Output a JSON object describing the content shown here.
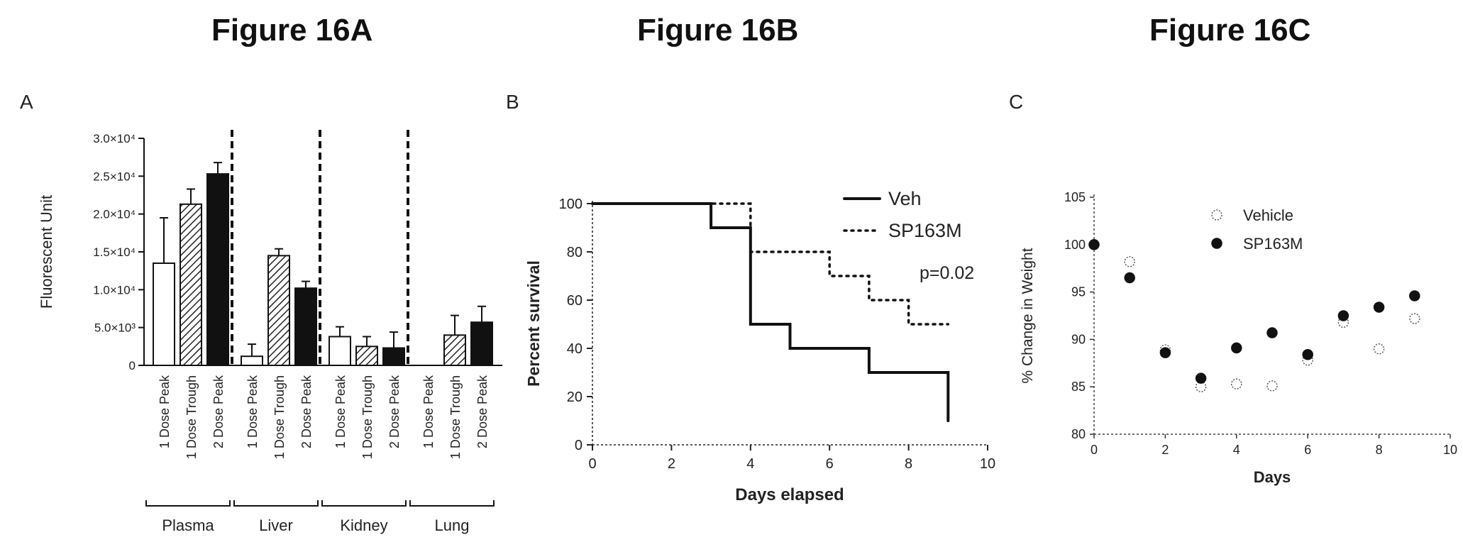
{
  "figure_titles": [
    "Figure 16A",
    "Figure 16B",
    "Figure 16C"
  ],
  "chart_data": [
    {
      "type": "bar",
      "panel_label": "A",
      "ylabel": "Fluorescent Unit",
      "ylim": [
        0,
        30000
      ],
      "yticks": [
        0,
        5000,
        10000,
        15000,
        20000,
        25000,
        30000
      ],
      "ytick_labels": [
        "0",
        "5.0×10³",
        "1.0×10⁴",
        "1.5×10⁴",
        "2.0×10⁴",
        "2.5×10⁴",
        "3.0×10⁴"
      ],
      "categories": [
        "1 Dose Peak",
        "1 Dose Trough",
        "2 Dose Peak",
        "1 Dose Peak",
        "1 Dose Trough",
        "2 Dose Peak",
        "1 Dose Peak",
        "1 Dose Trough",
        "2 Dose Peak",
        "1 Dose Peak",
        "1 Dose Trough",
        "2 Dose Peak"
      ],
      "groups": [
        {
          "name": "Plasma",
          "values": [
            13500,
            21300,
            25300
          ],
          "errors": [
            6000,
            2000,
            1500
          ]
        },
        {
          "name": "Liver",
          "values": [
            1200,
            14500,
            10200
          ],
          "errors": [
            1600,
            900,
            900
          ]
        },
        {
          "name": "Kidney",
          "values": [
            3800,
            2500,
            2300
          ],
          "errors": [
            1300,
            1300,
            2100
          ]
        },
        {
          "name": "Lung",
          "values": [
            0,
            4000,
            5700
          ],
          "errors": [
            0,
            2600,
            2100
          ]
        }
      ],
      "fill_styles": [
        "open",
        "hatched",
        "solid"
      ],
      "grid": false
    },
    {
      "type": "line",
      "panel_label": "B",
      "xlabel": "Days elapsed",
      "ylabel": "Percent survival",
      "xlim": [
        0,
        10
      ],
      "ylim": [
        0,
        100
      ],
      "xticks": [
        0,
        2,
        4,
        6,
        8,
        10
      ],
      "yticks": [
        0,
        20,
        40,
        60,
        80,
        100
      ],
      "series": [
        {
          "name": "Veh",
          "style": "solid",
          "x": [
            0,
            3,
            4,
            5,
            7,
            9
          ],
          "y": [
            100,
            90,
            50,
            40,
            30,
            10
          ]
        },
        {
          "name": "SP163M",
          "style": "dotted",
          "x": [
            0,
            3.5,
            4,
            6,
            7,
            8,
            9
          ],
          "y": [
            100,
            100,
            80,
            70,
            60,
            50,
            50
          ]
        }
      ],
      "annotation": "p=0.02",
      "legend_position": "top-right",
      "grid": false
    },
    {
      "type": "scatter",
      "panel_label": "C",
      "xlabel": "Days",
      "ylabel": "% Change in Weight",
      "xlim": [
        0,
        10
      ],
      "ylim": [
        80,
        105
      ],
      "xticks": [
        0,
        2,
        4,
        6,
        8,
        10
      ],
      "yticks": [
        80,
        85,
        90,
        95,
        100,
        105
      ],
      "series": [
        {
          "name": "Vehicle",
          "marker": "open",
          "x": [
            0,
            1,
            2,
            3,
            4,
            5,
            6,
            7,
            8,
            9
          ],
          "y": [
            100,
            98.2,
            88.9,
            85.0,
            85.3,
            85.1,
            87.8,
            91.8,
            89.0,
            92.2
          ]
        },
        {
          "name": "SP163M",
          "marker": "filled",
          "x": [
            0,
            1,
            2,
            3,
            4,
            5,
            6,
            7,
            8,
            9
          ],
          "y": [
            100,
            96.5,
            88.6,
            85.9,
            89.1,
            90.7,
            88.4,
            92.5,
            93.4,
            94.6
          ]
        }
      ],
      "legend_position": "top-center",
      "grid": false
    }
  ]
}
